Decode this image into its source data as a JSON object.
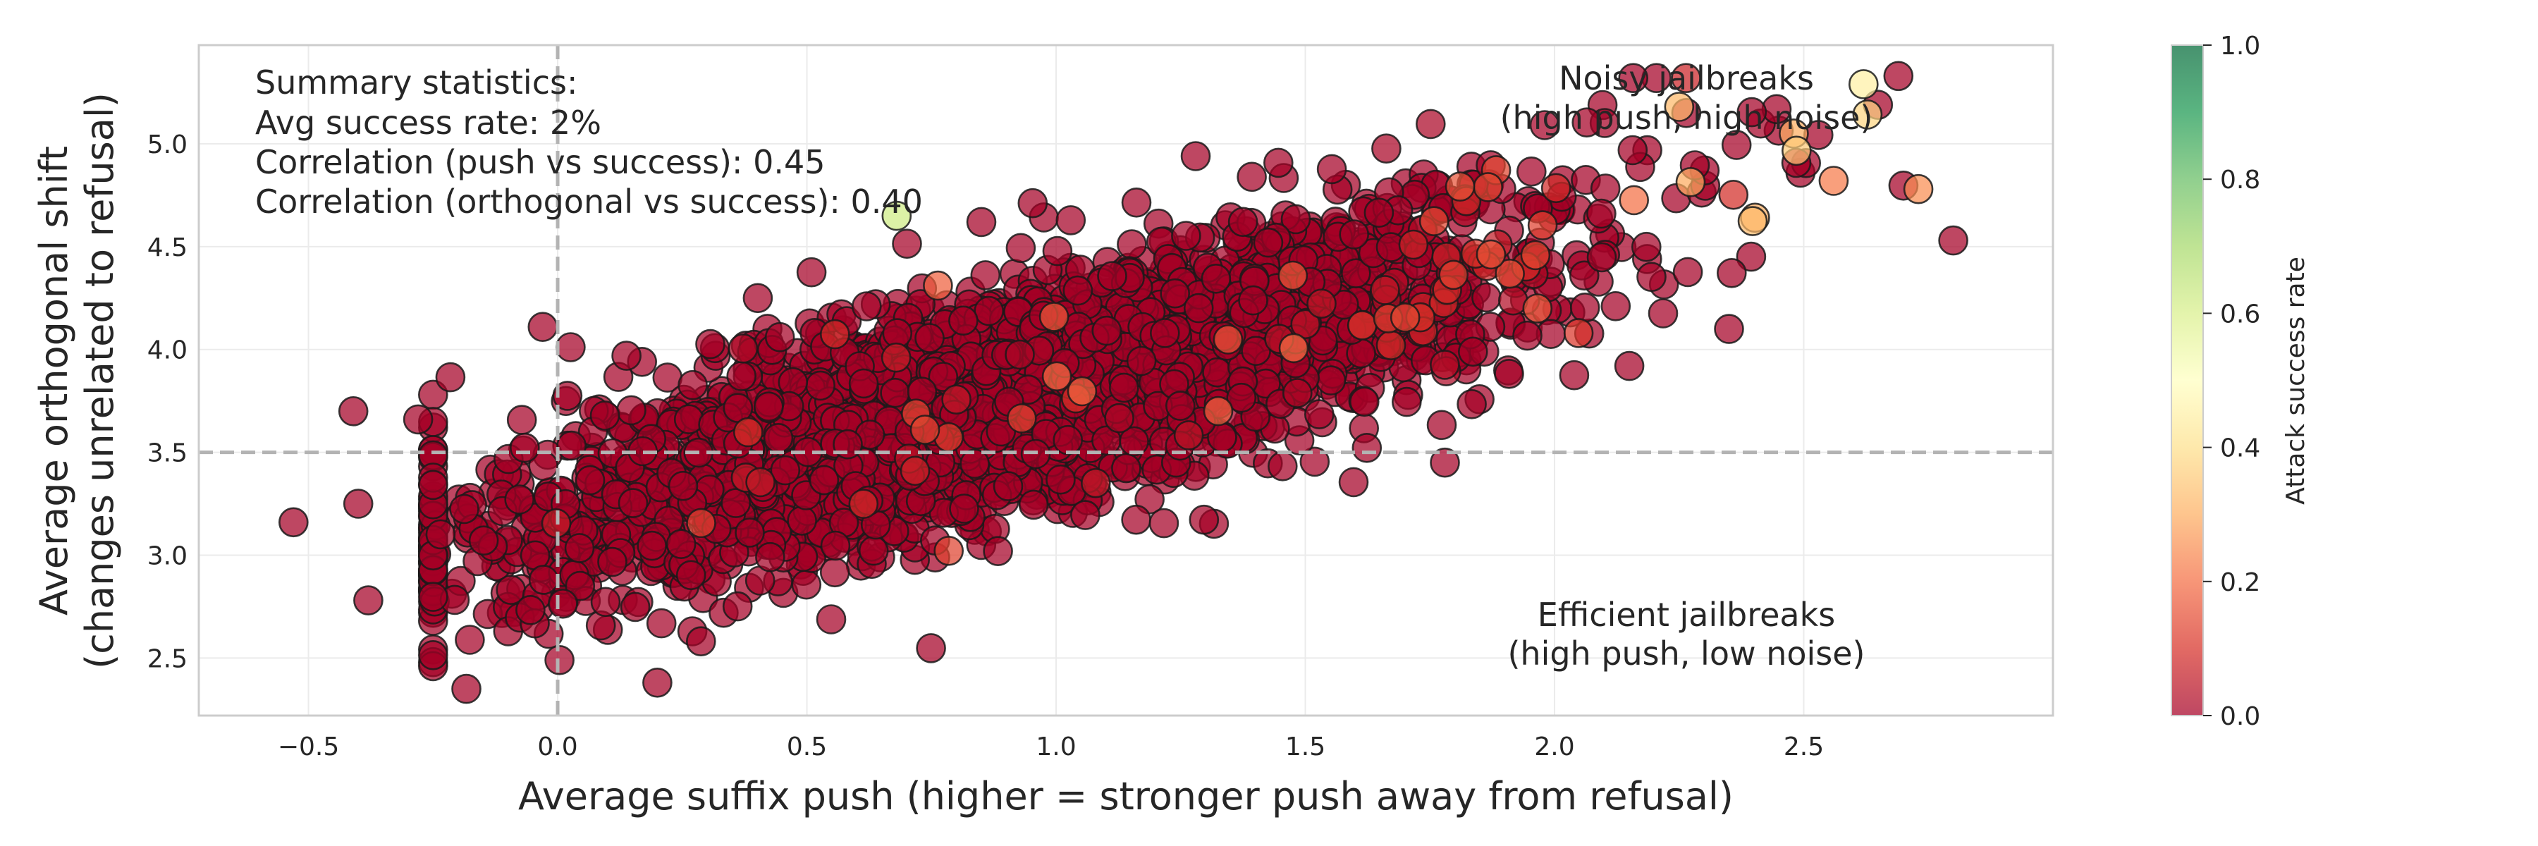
{
  "chart_data": {
    "type": "scatter",
    "title": "",
    "xlabel": "Average suffix push (higher = stronger push away from refusal)",
    "ylabel_lines": [
      "Average orthogonal shift",
      "(changes unrelated to refusal)"
    ],
    "xlim": [
      -0.72,
      3.0
    ],
    "ylim": [
      2.22,
      5.48
    ],
    "xticks": [
      -0.5,
      0.0,
      0.5,
      1.0,
      1.5,
      2.0,
      2.5
    ],
    "xtick_labels": [
      "−0.5",
      "0.0",
      "0.5",
      "1.0",
      "1.5",
      "2.0",
      "2.5"
    ],
    "yticks": [
      2.5,
      3.0,
      3.5,
      4.0,
      4.5,
      5.0
    ],
    "ytick_labels": [
      "2.5",
      "3.0",
      "3.5",
      "4.0",
      "4.5",
      "5.0"
    ],
    "grid": true,
    "reference_lines": {
      "x": 0.0,
      "y": 3.5
    },
    "colorbar": {
      "label": "Attack success rate",
      "range": [
        0.0,
        1.0
      ],
      "ticks": [
        0.0,
        0.2,
        0.4,
        0.6,
        0.8,
        1.0
      ],
      "tick_labels": [
        "0.0",
        "0.2",
        "0.4",
        "0.6",
        "0.8",
        "1.0"
      ],
      "colormap": "RdYlGn",
      "stops": [
        "#a50026",
        "#d73027",
        "#f46d43",
        "#fdae61",
        "#fee08b",
        "#ffffbf",
        "#d9ef8b",
        "#a6d96a",
        "#66bd63",
        "#1a9850",
        "#006837"
      ]
    },
    "summary_lines": [
      "Summary statistics:",
      "Avg success rate: 2%",
      "Correlation (push vs success): 0.45",
      "Correlation (orthogonal vs success): 0.40"
    ],
    "annotation_noisy": [
      "Noisy jailbreaks",
      "(high push, high noise)"
    ],
    "annotation_efficient": [
      "Efficient jailbreaks",
      "(high push, low noise)"
    ],
    "points_summary": {
      "count": 3200,
      "relation": "y ≈ 3.16 + 0.66 · x",
      "x_mean": 0.9,
      "x_sd": 0.55,
      "y_sd": 0.27,
      "typical_success_rate": 0.02
    },
    "sample_points": [
      {
        "x": -0.53,
        "y": 3.16,
        "s": 0.0
      },
      {
        "x": -0.41,
        "y": 3.7,
        "s": 0.0
      },
      {
        "x": -0.4,
        "y": 3.25,
        "s": 0.0
      },
      {
        "x": -0.38,
        "y": 2.78,
        "s": 0.0
      },
      {
        "x": -0.28,
        "y": 3.66,
        "s": 0.0
      },
      {
        "x": -0.03,
        "y": 4.11,
        "s": 0.0
      },
      {
        "x": 0.2,
        "y": 2.38,
        "s": 0.0
      },
      {
        "x": 0.68,
        "y": 4.65,
        "s": 0.62
      },
      {
        "x": 0.85,
        "y": 4.62,
        "s": 0.0
      },
      {
        "x": 1.28,
        "y": 4.94,
        "s": 0.0
      },
      {
        "x": 1.78,
        "y": 3.45,
        "s": 0.0
      },
      {
        "x": 2.25,
        "y": 5.18,
        "s": 0.32
      },
      {
        "x": 2.62,
        "y": 5.29,
        "s": 0.45
      },
      {
        "x": 2.69,
        "y": 5.33,
        "s": 0.0
      },
      {
        "x": 2.73,
        "y": 4.78,
        "s": 0.25
      },
      {
        "x": 2.8,
        "y": 4.53,
        "s": 0.0
      },
      {
        "x": 2.56,
        "y": 4.82,
        "s": 0.22
      },
      {
        "x": 2.48,
        "y": 5.05,
        "s": 0.3
      },
      {
        "x": 2.35,
        "y": 4.1,
        "s": 0.0
      },
      {
        "x": 2.15,
        "y": 3.92,
        "s": 0.0
      }
    ]
  }
}
